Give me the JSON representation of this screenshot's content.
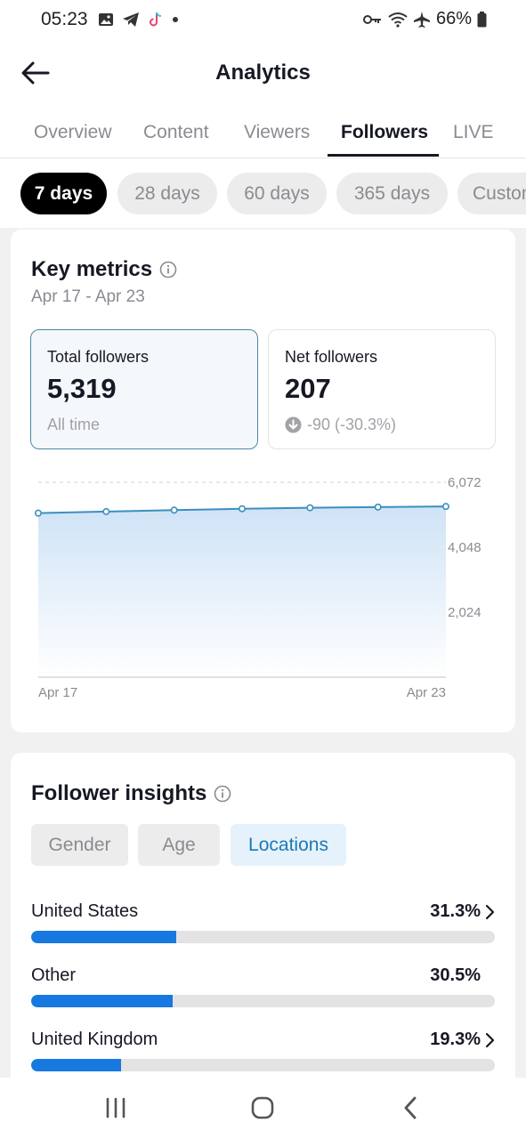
{
  "status_bar": {
    "time": "05:23",
    "battery": "66%",
    "left_icons": [
      "gallery-icon",
      "telegram-icon",
      "tiktok-icon",
      "dot-icon"
    ],
    "right_icons": [
      "vpn-key-icon",
      "wifi-icon",
      "airplane-icon",
      "battery-icon"
    ]
  },
  "header": {
    "title": "Analytics",
    "back_icon": "back-arrow-icon"
  },
  "tabs": [
    {
      "label": "Overview",
      "active": false
    },
    {
      "label": "Content",
      "active": false
    },
    {
      "label": "Viewers",
      "active": false
    },
    {
      "label": "Followers",
      "active": true
    },
    {
      "label": "LIVE",
      "active": false
    }
  ],
  "ranges": [
    {
      "label": "7 days",
      "active": true
    },
    {
      "label": "28 days",
      "active": false
    },
    {
      "label": "60 days",
      "active": false
    },
    {
      "label": "365 days",
      "active": false
    },
    {
      "label": "Custom",
      "active": false
    }
  ],
  "key_metrics": {
    "title": "Key metrics",
    "date_range": "Apr 17 - Apr 23",
    "total": {
      "label": "Total followers",
      "value": "5,319",
      "sub": "All time"
    },
    "net": {
      "label": "Net followers",
      "value": "207",
      "change": "-90 (-30.3%)"
    }
  },
  "chart_data": {
    "type": "area",
    "x": [
      "Apr 17",
      "Apr 18",
      "Apr 19",
      "Apr 20",
      "Apr 21",
      "Apr 22",
      "Apr 23"
    ],
    "series": [
      {
        "values": [
          5112,
          5160,
          5205,
          5248,
          5279,
          5300,
          5319
        ]
      }
    ],
    "y_ticks": [
      "6,072",
      "4,048",
      "2,024"
    ],
    "x_tick_labels": [
      "Apr 17",
      "Apr 23"
    ],
    "ylim": [
      0,
      6072
    ],
    "grid": true,
    "line_color": "#3b8fbf",
    "fill_color": "#cfe3f6"
  },
  "insights": {
    "title": "Follower insights",
    "segments": [
      {
        "label": "Gender",
        "active": false
      },
      {
        "label": "Age",
        "active": false
      },
      {
        "label": "Locations",
        "active": true
      }
    ],
    "locations": [
      {
        "name": "United States",
        "pct": "31.3%",
        "fraction": 0.313,
        "chevron": true
      },
      {
        "name": "Other",
        "pct": "30.5%",
        "fraction": 0.305,
        "chevron": false
      },
      {
        "name": "United Kingdom",
        "pct": "19.3%",
        "fraction": 0.193,
        "chevron": true
      }
    ]
  },
  "colors": {
    "accent": "#1778e0",
    "selected_border": "#4b87a8",
    "selected_segment_text": "#1c79b4"
  }
}
